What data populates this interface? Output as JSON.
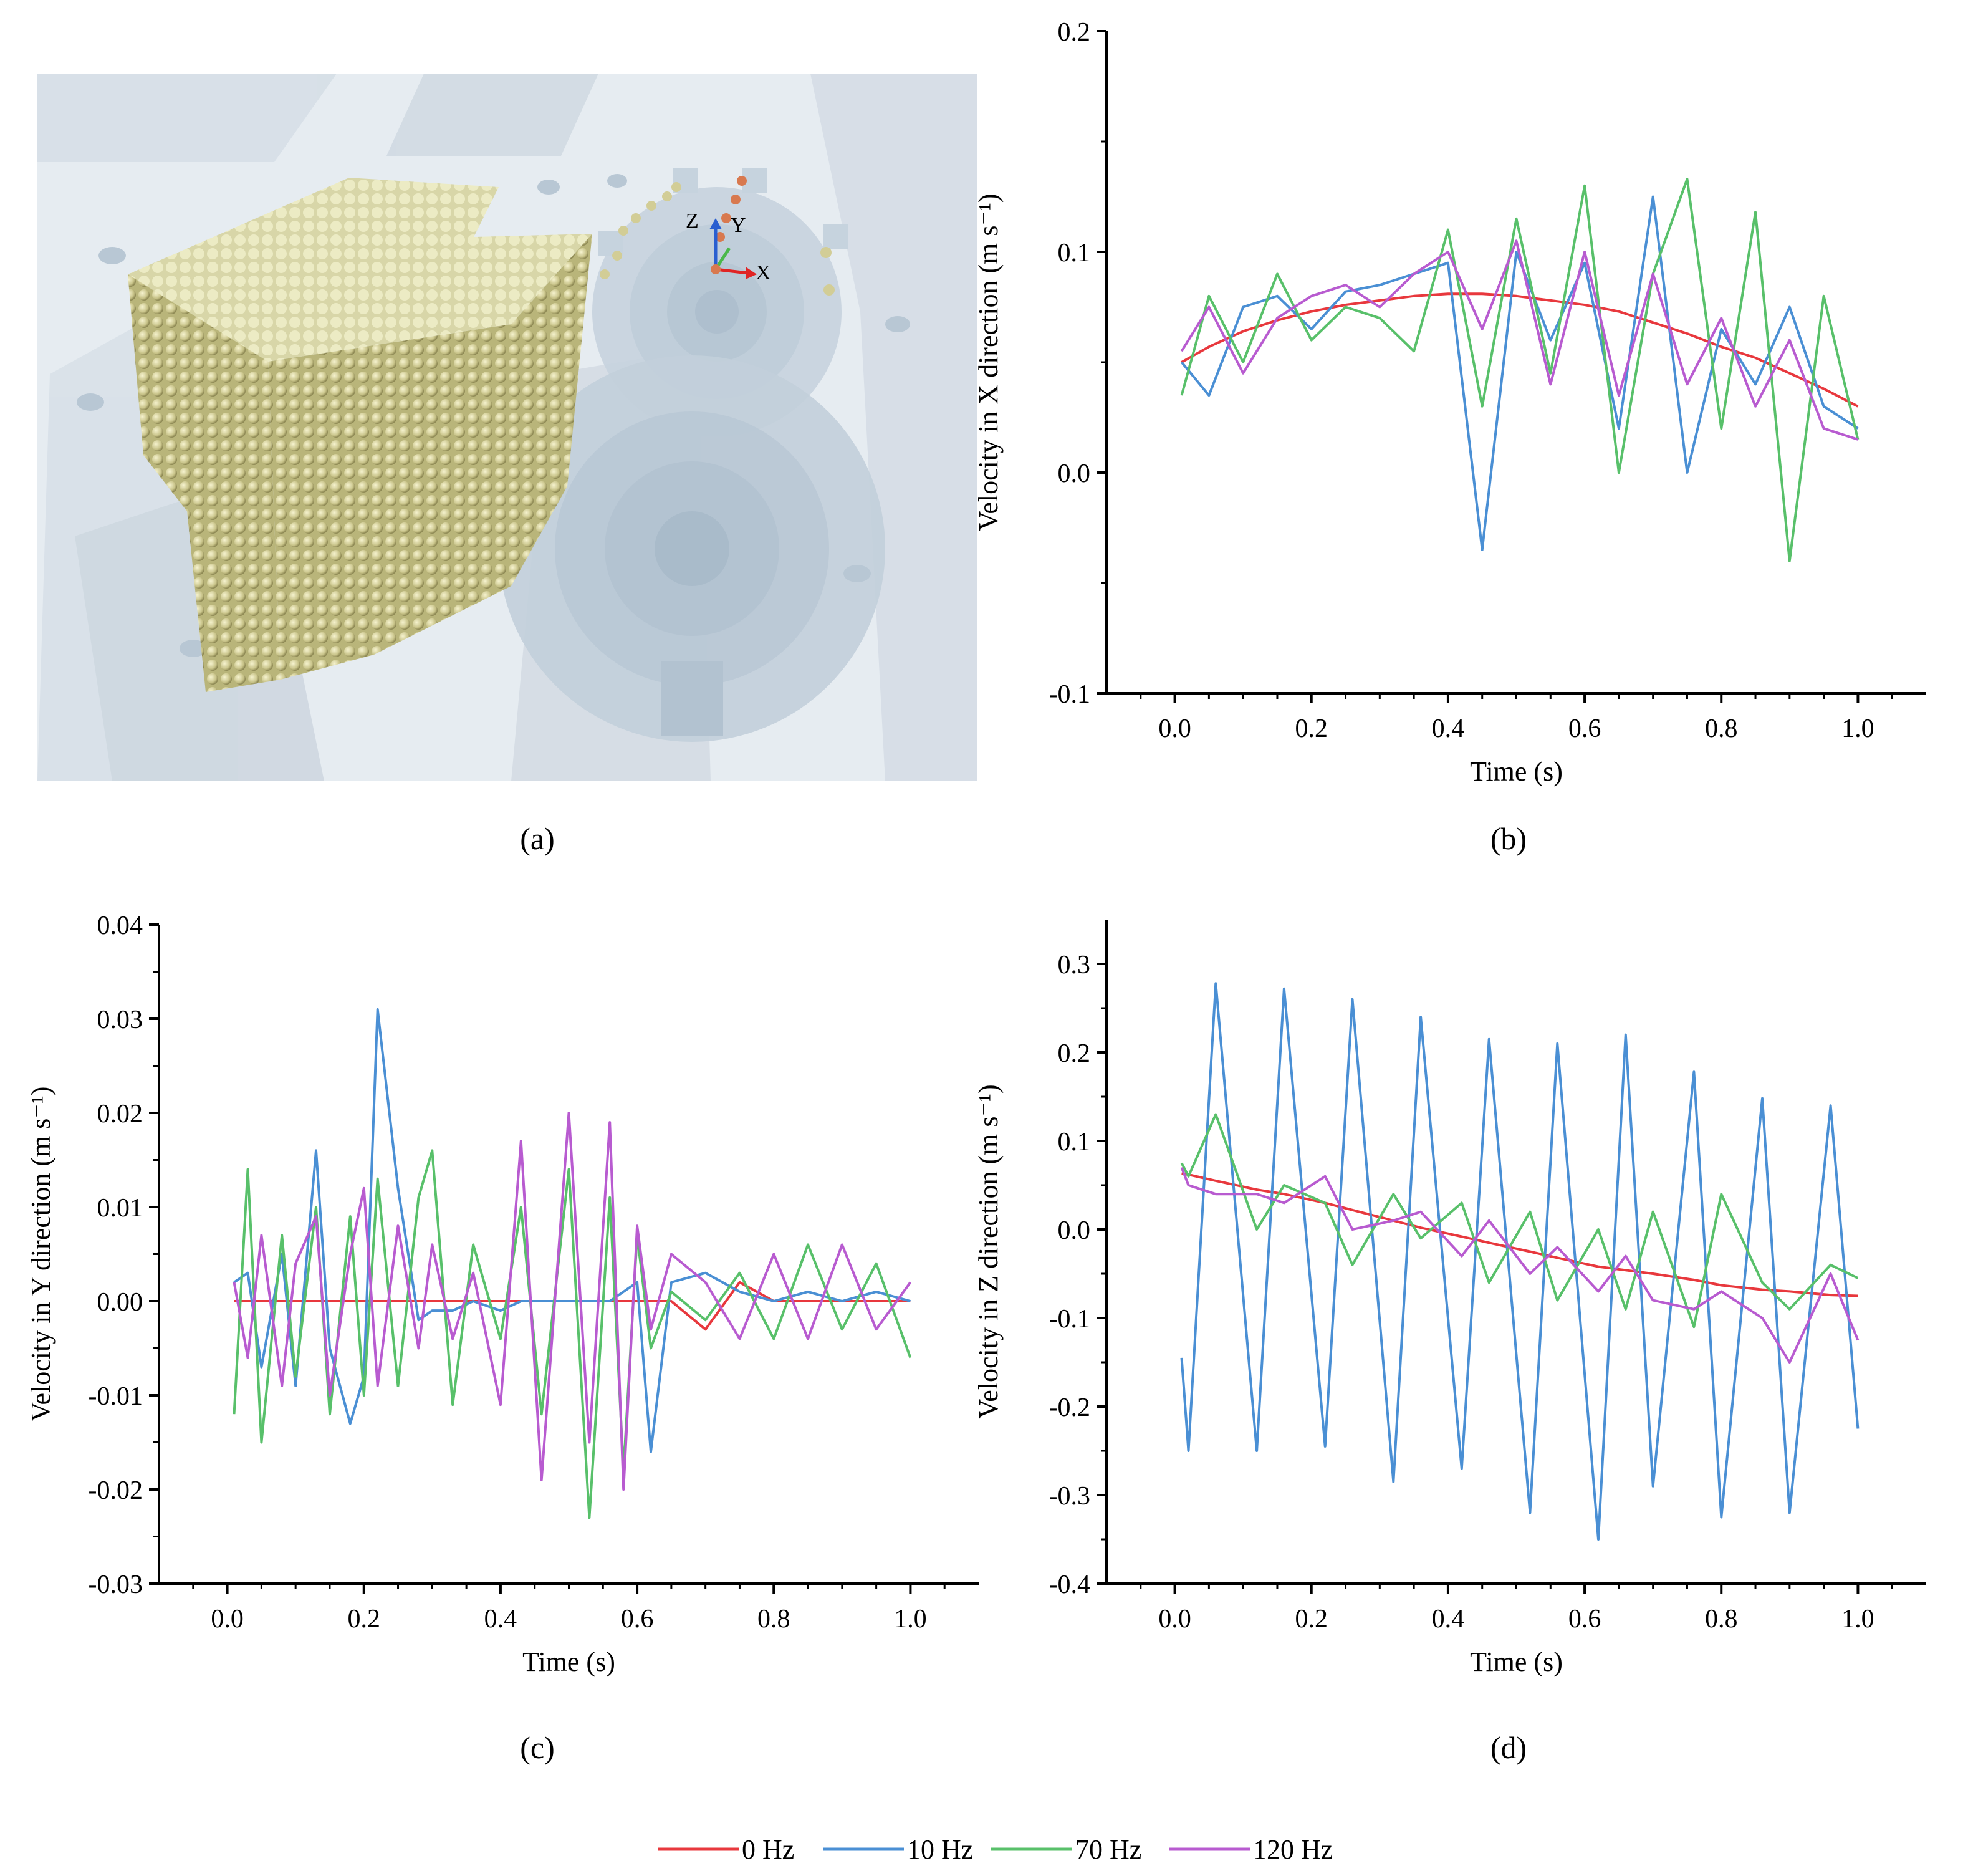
{
  "panels": {
    "a": {
      "caption": "(a)"
    },
    "b": {
      "caption": "(b)"
    },
    "c": {
      "caption": "(c)"
    },
    "d": {
      "caption": "(d)"
    }
  },
  "scene": {
    "description_visible_labels": [
      "Z",
      "Y",
      "X"
    ],
    "axis_label_z": "Z",
    "axis_label_y": "Y",
    "axis_label_x": "X",
    "colors": {
      "particle": "#c9c48a",
      "machine": "#c7d3de",
      "background": "#e6ecf1"
    }
  },
  "legend": [
    {
      "label": "0 Hz",
      "color": "#e8383d"
    },
    {
      "label": "10 Hz",
      "color": "#4a8fd4"
    },
    {
      "label": "70 Hz",
      "color": "#58c06a"
    },
    {
      "label": "120 Hz",
      "color": "#b85bd0"
    }
  ],
  "chart_data": [
    {
      "id": "b",
      "type": "line",
      "title": "",
      "xlabel": "Time (s)",
      "ylabel": "Velocity in X direction (m s⁻¹)",
      "xlim": [
        -0.1,
        1.1
      ],
      "ylim": [
        -0.1,
        0.2
      ],
      "xticks": [
        0.0,
        0.2,
        0.4,
        0.6,
        0.8,
        1.0
      ],
      "xtick_labels": [
        "0.0",
        "0.2",
        "0.4",
        "0.6",
        "0.8",
        "1.0"
      ],
      "yticks": [
        -0.1,
        0.0,
        0.1,
        0.2
      ],
      "ytick_labels": [
        "-0.1",
        "0.0",
        "0.1",
        "0.2"
      ],
      "x": [
        0.01,
        0.05,
        0.1,
        0.15,
        0.2,
        0.25,
        0.3,
        0.35,
        0.4,
        0.45,
        0.5,
        0.55,
        0.6,
        0.65,
        0.7,
        0.75,
        0.8,
        0.85,
        0.9,
        0.95,
        1.0
      ],
      "series": [
        {
          "name": "0 Hz",
          "values": [
            0.05,
            0.057,
            0.064,
            0.069,
            0.073,
            0.076,
            0.078,
            0.08,
            0.081,
            0.081,
            0.08,
            0.078,
            0.076,
            0.073,
            0.068,
            0.063,
            0.057,
            0.052,
            0.045,
            0.038,
            0.03
          ]
        },
        {
          "name": "10 Hz",
          "values": [
            0.05,
            0.035,
            0.075,
            0.08,
            0.065,
            0.082,
            0.085,
            0.09,
            0.095,
            -0.035,
            0.1,
            0.06,
            0.095,
            0.02,
            0.125,
            0.0,
            0.065,
            0.04,
            0.075,
            0.03,
            0.02
          ]
        },
        {
          "name": "70 Hz",
          "values": [
            0.035,
            0.08,
            0.05,
            0.09,
            0.06,
            0.075,
            0.07,
            0.055,
            0.11,
            0.03,
            0.115,
            0.045,
            0.13,
            0.0,
            0.09,
            0.133,
            0.02,
            0.118,
            -0.04,
            0.08,
            0.015
          ]
        },
        {
          "name": "120 Hz",
          "values": [
            0.055,
            0.075,
            0.045,
            0.07,
            0.08,
            0.085,
            0.075,
            0.09,
            0.1,
            0.065,
            0.105,
            0.04,
            0.1,
            0.035,
            0.09,
            0.04,
            0.07,
            0.03,
            0.06,
            0.02,
            0.015
          ]
        }
      ]
    },
    {
      "id": "c",
      "type": "line",
      "title": "",
      "xlabel": "Time (s)",
      "ylabel": "Velocity in Y direction (m s⁻¹)",
      "xlim": [
        -0.1,
        1.1
      ],
      "ylim": [
        -0.03,
        0.04
      ],
      "xticks": [
        0.0,
        0.2,
        0.4,
        0.6,
        0.8,
        1.0
      ],
      "xtick_labels": [
        "0.0",
        "0.2",
        "0.4",
        "0.6",
        "0.8",
        "1.0"
      ],
      "yticks": [
        -0.03,
        -0.02,
        -0.01,
        0.0,
        0.01,
        0.02,
        0.03,
        0.04
      ],
      "ytick_labels": [
        "-0.03",
        "-0.02",
        "-0.01",
        "0.00",
        "0.01",
        "0.02",
        "0.03",
        "0.04"
      ],
      "x": [
        0.01,
        0.03,
        0.05,
        0.08,
        0.1,
        0.13,
        0.15,
        0.18,
        0.2,
        0.22,
        0.25,
        0.28,
        0.3,
        0.33,
        0.36,
        0.4,
        0.43,
        0.46,
        0.5,
        0.53,
        0.56,
        0.58,
        0.6,
        0.62,
        0.65,
        0.7,
        0.75,
        0.8,
        0.85,
        0.9,
        0.95,
        1.0
      ],
      "series": [
        {
          "name": "0 Hz",
          "values": [
            0.0,
            0.0,
            0.0,
            0.0,
            0.0,
            0.0,
            0.0,
            0.0,
            0.0,
            0.0,
            0.0,
            0.0,
            0.0,
            0.0,
            0.0,
            0.0,
            0.0,
            0.0,
            0.0,
            0.0,
            0.0,
            0.0,
            0.0,
            0.0,
            0.0,
            -0.003,
            0.002,
            0.0,
            0.0,
            0.0,
            0.0,
            0.0
          ]
        },
        {
          "name": "10 Hz",
          "values": [
            0.002,
            0.003,
            -0.007,
            0.005,
            -0.009,
            0.016,
            -0.005,
            -0.013,
            -0.008,
            0.031,
            0.012,
            -0.002,
            -0.001,
            -0.001,
            0.0,
            -0.001,
            0.0,
            0.0,
            0.0,
            0.0,
            0.0,
            0.001,
            0.002,
            -0.016,
            0.002,
            0.003,
            0.001,
            0.0,
            0.001,
            0.0,
            0.001,
            0.0
          ]
        },
        {
          "name": "70 Hz",
          "values": [
            -0.012,
            0.014,
            -0.015,
            0.007,
            -0.008,
            0.01,
            -0.012,
            0.009,
            -0.01,
            0.013,
            -0.009,
            0.011,
            0.016,
            -0.011,
            0.006,
            -0.004,
            0.01,
            -0.012,
            0.014,
            -0.023,
            0.011,
            -0.018,
            0.007,
            -0.005,
            0.001,
            -0.002,
            0.003,
            -0.004,
            0.006,
            -0.003,
            0.004,
            -0.006
          ]
        },
        {
          "name": "120 Hz",
          "values": [
            0.002,
            -0.006,
            0.007,
            -0.009,
            0.004,
            0.009,
            -0.01,
            0.005,
            0.012,
            -0.009,
            0.008,
            -0.005,
            0.006,
            -0.004,
            0.003,
            -0.011,
            0.017,
            -0.019,
            0.02,
            -0.015,
            0.019,
            -0.02,
            0.008,
            -0.003,
            0.005,
            0.002,
            -0.004,
            0.005,
            -0.004,
            0.006,
            -0.003,
            0.002
          ]
        }
      ]
    },
    {
      "id": "d",
      "type": "line",
      "title": "",
      "xlabel": "Time (s)",
      "ylabel": "Velocity in Z direction (m s⁻¹)",
      "xlim": [
        -0.1,
        1.1
      ],
      "ylim": [
        -0.4,
        0.35
      ],
      "xticks": [
        0.0,
        0.2,
        0.4,
        0.6,
        0.8,
        1.0
      ],
      "xtick_labels": [
        "0.0",
        "0.2",
        "0.4",
        "0.6",
        "0.8",
        "1.0"
      ],
      "yticks": [
        -0.4,
        -0.3,
        -0.2,
        -0.1,
        0.0,
        0.1,
        0.2,
        0.3
      ],
      "ytick_labels": [
        "-0.4",
        "-0.3",
        "-0.2",
        "-0.1",
        "0.0",
        "0.1",
        "0.2",
        "0.3"
      ],
      "x": [
        0.01,
        0.02,
        0.06,
        0.12,
        0.16,
        0.22,
        0.26,
        0.32,
        0.36,
        0.42,
        0.46,
        0.52,
        0.56,
        0.62,
        0.66,
        0.7,
        0.76,
        0.8,
        0.86,
        0.9,
        0.96,
        1.0
      ],
      "series": [
        {
          "name": "0 Hz",
          "values": [
            0.063,
            0.062,
            0.055,
            0.045,
            0.04,
            0.03,
            0.022,
            0.01,
            0.002,
            -0.008,
            -0.015,
            -0.025,
            -0.032,
            -0.042,
            -0.046,
            -0.05,
            -0.057,
            -0.063,
            -0.068,
            -0.07,
            -0.074,
            -0.075
          ]
        },
        {
          "name": "10 Hz",
          "values": [
            -0.145,
            -0.25,
            0.278,
            -0.25,
            0.272,
            -0.245,
            0.26,
            -0.285,
            0.24,
            -0.27,
            0.215,
            -0.32,
            0.21,
            -0.35,
            0.22,
            -0.29,
            0.178,
            -0.325,
            0.148,
            -0.32,
            0.14,
            -0.225
          ]
        },
        {
          "name": "70 Hz",
          "values": [
            0.075,
            0.06,
            0.13,
            0.0,
            0.05,
            0.03,
            -0.04,
            0.04,
            -0.01,
            0.03,
            -0.06,
            0.02,
            -0.08,
            0.0,
            -0.09,
            0.02,
            -0.11,
            0.04,
            -0.06,
            -0.09,
            -0.04,
            -0.055
          ]
        },
        {
          "name": "120 Hz",
          "values": [
            0.07,
            0.05,
            0.04,
            0.04,
            0.03,
            0.06,
            0.0,
            0.01,
            0.02,
            -0.03,
            0.01,
            -0.05,
            -0.02,
            -0.07,
            -0.03,
            -0.08,
            -0.09,
            -0.07,
            -0.1,
            -0.15,
            -0.05,
            -0.125
          ]
        }
      ]
    }
  ]
}
